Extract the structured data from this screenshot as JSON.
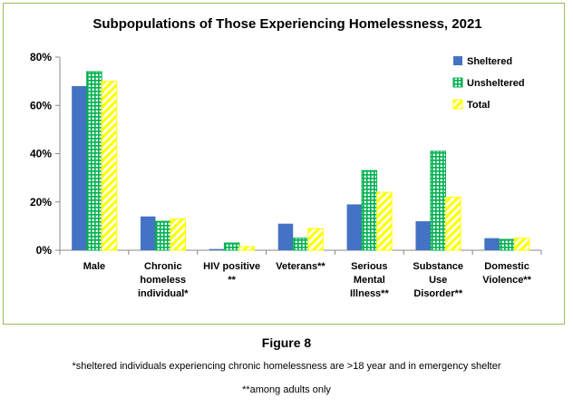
{
  "chart_data": {
    "type": "bar",
    "title": "Subpopulations of Those Experiencing Homelessness, 2021",
    "categories": [
      [
        "Male"
      ],
      [
        "Chronic",
        "homeless",
        "individual*"
      ],
      [
        "HIV positive",
        "**"
      ],
      [
        "Veterans**"
      ],
      [
        "Serious",
        "Mental",
        "Illness**"
      ],
      [
        "Substance",
        "Use",
        "Disorder**"
      ],
      [
        "Domestic",
        "Violence**"
      ]
    ],
    "series": [
      {
        "name": "Sheltered",
        "color": "#4472c4",
        "pattern": "solid",
        "values": [
          68,
          14,
          0.5,
          11,
          19,
          12,
          5
        ]
      },
      {
        "name": "Unsheltered",
        "color": "#00b050",
        "pattern": "grid",
        "values": [
          74,
          12,
          3,
          5,
          33,
          41,
          4.5
        ]
      },
      {
        "name": "Total",
        "color": "#ffff00",
        "pattern": "diagonal",
        "values": [
          70,
          13,
          1.5,
          9,
          24,
          22,
          5
        ]
      }
    ],
    "yticks": [
      "0%",
      "20%",
      "40%",
      "60%",
      "80%"
    ],
    "ylim": [
      0,
      80
    ],
    "legend_position": "top-right",
    "grid": false
  },
  "figure_label": "Figure 8",
  "notes": [
    "*sheltered individuals experiencing chronic homelessness are >18 year and in emergency shelter",
    "**among adults only"
  ]
}
